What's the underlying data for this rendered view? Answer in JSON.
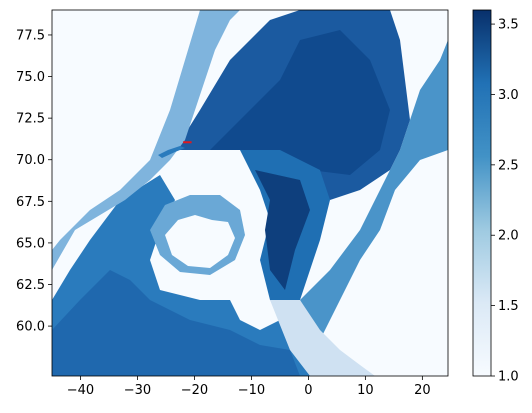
{
  "chart_data": {
    "type": "heatmap",
    "title": "",
    "xlabel": "",
    "ylabel": "",
    "xlim": [
      -45,
      24.5
    ],
    "ylim": [
      57,
      79
    ],
    "x_ticks": [
      -40,
      -30,
      -20,
      -10,
      0,
      10,
      20
    ],
    "x_tick_labels": [
      "−40",
      "−30",
      "−20",
      "−10",
      "0",
      "10",
      "20"
    ],
    "y_ticks": [
      60.0,
      62.5,
      65.0,
      67.5,
      70.0,
      72.5,
      75.0,
      77.5
    ],
    "y_tick_labels": [
      "60.0",
      "62.5",
      "65.0",
      "67.5",
      "70.0",
      "72.5",
      "75.0",
      "77.5"
    ],
    "colormap": "Blues",
    "colorbar": {
      "range": [
        1.0,
        3.6
      ],
      "ticks": [
        1.0,
        1.5,
        2.0,
        2.5,
        3.0,
        3.5
      ],
      "tick_labels": [
        "1.0",
        "1.5",
        "2.0",
        "2.5",
        "3.0",
        "3.5"
      ]
    },
    "annotation_line": {
      "color": "#e0191f",
      "x": [
        -22,
        -20.5
      ],
      "y": [
        71.05,
        71.05
      ]
    }
  }
}
